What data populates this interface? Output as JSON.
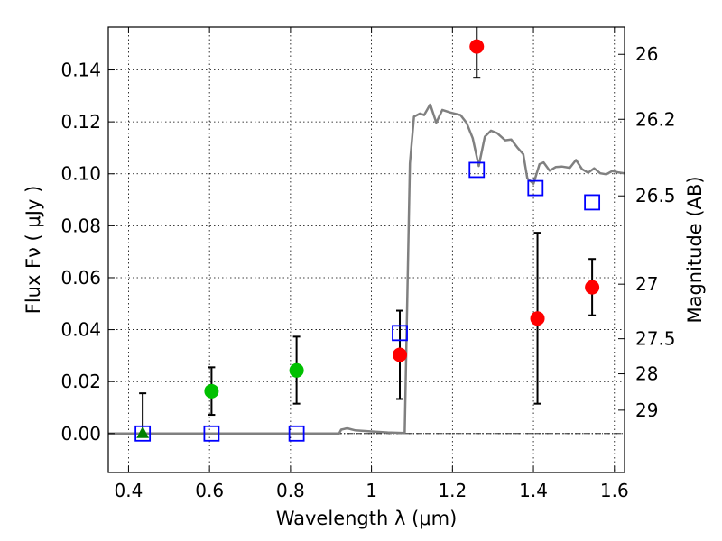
{
  "chart_data": {
    "type": "scatter",
    "xlabel": "Wavelength  λ (μm)",
    "ylabel": "Flux  Fν  ( μJy )",
    "ylabel_right": "Magnitude (AB)",
    "xlim": [
      0.35,
      1.625
    ],
    "ylim": [
      -0.015,
      0.1565
    ],
    "grid": true,
    "x_ticks": [
      0.4,
      0.6,
      0.8,
      1.0,
      1.2,
      1.4,
      1.6
    ],
    "x_tick_labels": [
      "0.4",
      "0.6",
      "0.8",
      "1",
      "1.2",
      "1.4",
      "1.6"
    ],
    "y_ticks": [
      0.0,
      0.02,
      0.04,
      0.06,
      0.08,
      0.1,
      0.12,
      0.14
    ],
    "y_tick_labels": [
      "0.00",
      "0.02",
      "0.04",
      "0.06",
      "0.08",
      "0.10",
      "0.12",
      "0.14"
    ],
    "right_ticks": [
      {
        "label": "26",
        "flux": 0.146
      },
      {
        "label": "26.2",
        "flux": 0.121
      },
      {
        "label": "26.5",
        "flux": 0.0915
      },
      {
        "label": "27",
        "flux": 0.0575
      },
      {
        "label": "27.5",
        "flux": 0.0365
      },
      {
        "label": "28",
        "flux": 0.023
      },
      {
        "label": "29",
        "flux": 0.009
      }
    ],
    "colors": {
      "template": "#808080",
      "detection": "#ff0000",
      "marginal": "#00c000",
      "upper_limit": "#008000",
      "model": "#0000ff",
      "errorbar": "#000000"
    },
    "series": [
      {
        "marker": "triangle",
        "color": "#008000",
        "points": [
          {
            "x": 0.435,
            "y": 0.0,
            "err": [
              0.0,
              0.0155
            ]
          }
        ]
      },
      {
        "marker": "circle",
        "color": "#00c000",
        "points": [
          {
            "x": 0.605,
            "y": 0.0163,
            "err": [
              0.0072,
              0.0255
            ]
          },
          {
            "x": 0.815,
            "y": 0.0243,
            "err": [
              0.0115,
              0.0373
            ]
          }
        ]
      },
      {
        "marker": "circle",
        "color": "#ff0000",
        "points": [
          {
            "x": 1.07,
            "y": 0.0303,
            "err": [
              0.0133,
              0.0473
            ]
          },
          {
            "x": 1.26,
            "y": 0.149,
            "err": [
              0.137,
              0.161
            ]
          },
          {
            "x": 1.41,
            "y": 0.0443,
            "err": [
              0.0115,
              0.0773
            ]
          },
          {
            "x": 1.545,
            "y": 0.0563,
            "err": [
              0.0455,
              0.0672
            ]
          }
        ]
      },
      {
        "marker": "square",
        "color": "#0000ff",
        "points": [
          {
            "x": 0.435,
            "y": 0.0
          },
          {
            "x": 0.605,
            "y": 0.0
          },
          {
            "x": 0.815,
            "y": 0.0
          },
          {
            "x": 1.07,
            "y": 0.0387
          },
          {
            "x": 1.26,
            "y": 0.1015
          },
          {
            "x": 1.405,
            "y": 0.0945
          },
          {
            "x": 1.545,
            "y": 0.089
          }
        ]
      },
      {
        "marker": "line",
        "color": "#808080",
        "points": [
          {
            "x": 0.35,
            "y": 0.0
          },
          {
            "x": 0.92,
            "y": 0.0
          },
          {
            "x": 0.925,
            "y": 0.0015
          },
          {
            "x": 0.94,
            "y": 0.002
          },
          {
            "x": 0.96,
            "y": 0.0012
          },
          {
            "x": 1.0,
            "y": 0.0008
          },
          {
            "x": 1.04,
            "y": 0.0004
          },
          {
            "x": 1.082,
            "y": 0.0002
          },
          {
            "x": 1.095,
            "y": 0.104
          },
          {
            "x": 1.105,
            "y": 0.122
          },
          {
            "x": 1.12,
            "y": 0.1232
          },
          {
            "x": 1.13,
            "y": 0.1226
          },
          {
            "x": 1.145,
            "y": 0.1267
          },
          {
            "x": 1.16,
            "y": 0.1197
          },
          {
            "x": 1.175,
            "y": 0.1246
          },
          {
            "x": 1.195,
            "y": 0.1236
          },
          {
            "x": 1.22,
            "y": 0.1226
          },
          {
            "x": 1.235,
            "y": 0.1196
          },
          {
            "x": 1.25,
            "y": 0.1137
          },
          {
            "x": 1.265,
            "y": 0.103
          },
          {
            "x": 1.28,
            "y": 0.1143
          },
          {
            "x": 1.295,
            "y": 0.1166
          },
          {
            "x": 1.31,
            "y": 0.1157
          },
          {
            "x": 1.33,
            "y": 0.1129
          },
          {
            "x": 1.345,
            "y": 0.1132
          },
          {
            "x": 1.36,
            "y": 0.1102
          },
          {
            "x": 1.375,
            "y": 0.1075
          },
          {
            "x": 1.385,
            "y": 0.0982
          },
          {
            "x": 1.4,
            "y": 0.0962
          },
          {
            "x": 1.415,
            "y": 0.1037
          },
          {
            "x": 1.425,
            "y": 0.1044
          },
          {
            "x": 1.44,
            "y": 0.1012
          },
          {
            "x": 1.455,
            "y": 0.1026
          },
          {
            "x": 1.47,
            "y": 0.1028
          },
          {
            "x": 1.49,
            "y": 0.1023
          },
          {
            "x": 1.505,
            "y": 0.1053
          },
          {
            "x": 1.52,
            "y": 0.1018
          },
          {
            "x": 1.535,
            "y": 0.1004
          },
          {
            "x": 1.55,
            "y": 0.1021
          },
          {
            "x": 1.565,
            "y": 0.1002
          },
          {
            "x": 1.58,
            "y": 0.0998
          },
          {
            "x": 1.595,
            "y": 0.1011
          },
          {
            "x": 1.61,
            "y": 0.1005
          },
          {
            "x": 1.625,
            "y": 0.1002
          }
        ]
      }
    ]
  }
}
